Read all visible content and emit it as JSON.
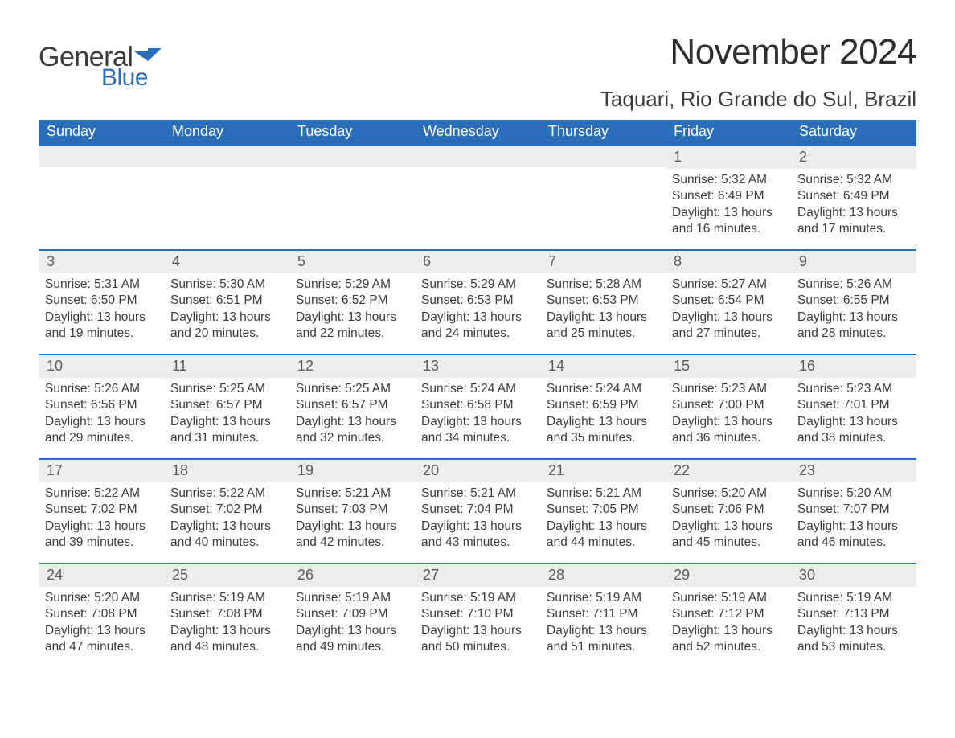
{
  "brand": {
    "line1": "General",
    "line2": "Blue",
    "flag_color": "#2a6db8"
  },
  "title": "November 2024",
  "location": "Taquari, Rio Grande do Sul, Brazil",
  "header_bg": "#2a6db8",
  "header_text_color": "#ffffff",
  "daynum_bg": "#ededed",
  "rule_color": "#2a6db8",
  "text_color": "#3b3b3b",
  "background_color": "#ffffff",
  "weekdays": [
    "Sunday",
    "Monday",
    "Tuesday",
    "Wednesday",
    "Thursday",
    "Friday",
    "Saturday"
  ],
  "weeks": [
    [
      null,
      null,
      null,
      null,
      null,
      {
        "n": "1",
        "sunrise": "5:32 AM",
        "sunset": "6:49 PM",
        "daylight": "13 hours and 16 minutes."
      },
      {
        "n": "2",
        "sunrise": "5:32 AM",
        "sunset": "6:49 PM",
        "daylight": "13 hours and 17 minutes."
      }
    ],
    [
      {
        "n": "3",
        "sunrise": "5:31 AM",
        "sunset": "6:50 PM",
        "daylight": "13 hours and 19 minutes."
      },
      {
        "n": "4",
        "sunrise": "5:30 AM",
        "sunset": "6:51 PM",
        "daylight": "13 hours and 20 minutes."
      },
      {
        "n": "5",
        "sunrise": "5:29 AM",
        "sunset": "6:52 PM",
        "daylight": "13 hours and 22 minutes."
      },
      {
        "n": "6",
        "sunrise": "5:29 AM",
        "sunset": "6:53 PM",
        "daylight": "13 hours and 24 minutes."
      },
      {
        "n": "7",
        "sunrise": "5:28 AM",
        "sunset": "6:53 PM",
        "daylight": "13 hours and 25 minutes."
      },
      {
        "n": "8",
        "sunrise": "5:27 AM",
        "sunset": "6:54 PM",
        "daylight": "13 hours and 27 minutes."
      },
      {
        "n": "9",
        "sunrise": "5:26 AM",
        "sunset": "6:55 PM",
        "daylight": "13 hours and 28 minutes."
      }
    ],
    [
      {
        "n": "10",
        "sunrise": "5:26 AM",
        "sunset": "6:56 PM",
        "daylight": "13 hours and 29 minutes."
      },
      {
        "n": "11",
        "sunrise": "5:25 AM",
        "sunset": "6:57 PM",
        "daylight": "13 hours and 31 minutes."
      },
      {
        "n": "12",
        "sunrise": "5:25 AM",
        "sunset": "6:57 PM",
        "daylight": "13 hours and 32 minutes."
      },
      {
        "n": "13",
        "sunrise": "5:24 AM",
        "sunset": "6:58 PM",
        "daylight": "13 hours and 34 minutes."
      },
      {
        "n": "14",
        "sunrise": "5:24 AM",
        "sunset": "6:59 PM",
        "daylight": "13 hours and 35 minutes."
      },
      {
        "n": "15",
        "sunrise": "5:23 AM",
        "sunset": "7:00 PM",
        "daylight": "13 hours and 36 minutes."
      },
      {
        "n": "16",
        "sunrise": "5:23 AM",
        "sunset": "7:01 PM",
        "daylight": "13 hours and 38 minutes."
      }
    ],
    [
      {
        "n": "17",
        "sunrise": "5:22 AM",
        "sunset": "7:02 PM",
        "daylight": "13 hours and 39 minutes."
      },
      {
        "n": "18",
        "sunrise": "5:22 AM",
        "sunset": "7:02 PM",
        "daylight": "13 hours and 40 minutes."
      },
      {
        "n": "19",
        "sunrise": "5:21 AM",
        "sunset": "7:03 PM",
        "daylight": "13 hours and 42 minutes."
      },
      {
        "n": "20",
        "sunrise": "5:21 AM",
        "sunset": "7:04 PM",
        "daylight": "13 hours and 43 minutes."
      },
      {
        "n": "21",
        "sunrise": "5:21 AM",
        "sunset": "7:05 PM",
        "daylight": "13 hours and 44 minutes."
      },
      {
        "n": "22",
        "sunrise": "5:20 AM",
        "sunset": "7:06 PM",
        "daylight": "13 hours and 45 minutes."
      },
      {
        "n": "23",
        "sunrise": "5:20 AM",
        "sunset": "7:07 PM",
        "daylight": "13 hours and 46 minutes."
      }
    ],
    [
      {
        "n": "24",
        "sunrise": "5:20 AM",
        "sunset": "7:08 PM",
        "daylight": "13 hours and 47 minutes."
      },
      {
        "n": "25",
        "sunrise": "5:19 AM",
        "sunset": "7:08 PM",
        "daylight": "13 hours and 48 minutes."
      },
      {
        "n": "26",
        "sunrise": "5:19 AM",
        "sunset": "7:09 PM",
        "daylight": "13 hours and 49 minutes."
      },
      {
        "n": "27",
        "sunrise": "5:19 AM",
        "sunset": "7:10 PM",
        "daylight": "13 hours and 50 minutes."
      },
      {
        "n": "28",
        "sunrise": "5:19 AM",
        "sunset": "7:11 PM",
        "daylight": "13 hours and 51 minutes."
      },
      {
        "n": "29",
        "sunrise": "5:19 AM",
        "sunset": "7:12 PM",
        "daylight": "13 hours and 52 minutes."
      },
      {
        "n": "30",
        "sunrise": "5:19 AM",
        "sunset": "7:13 PM",
        "daylight": "13 hours and 53 minutes."
      }
    ]
  ],
  "labels": {
    "sunrise": "Sunrise:",
    "sunset": "Sunset:",
    "daylight": "Daylight:"
  }
}
